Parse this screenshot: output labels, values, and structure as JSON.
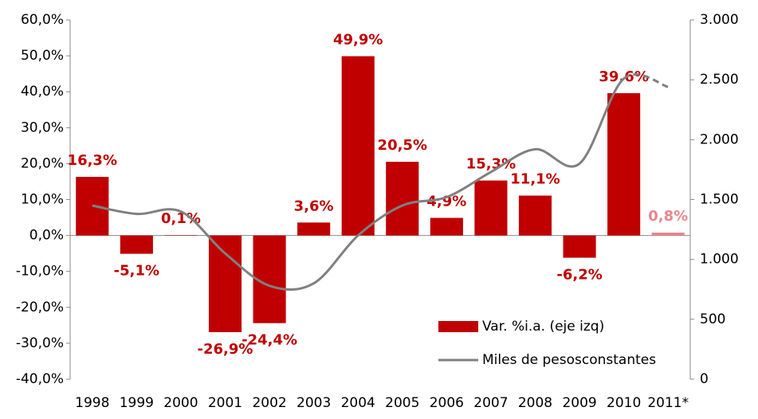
{
  "chart_data": {
    "type": "bar_line",
    "categories": [
      "1998",
      "1999",
      "2000",
      "2001",
      "2002",
      "2003",
      "2004",
      "2005",
      "2006",
      "2007",
      "2008",
      "2009",
      "2010",
      "2011*"
    ],
    "series": [
      {
        "name": "Var. %i.a. (eje izq)",
        "type": "bar",
        "color": "#c00000",
        "point_colors": [
          "#c00000",
          "#c00000",
          "#c00000",
          "#c00000",
          "#c00000",
          "#c00000",
          "#c00000",
          "#c00000",
          "#c00000",
          "#c00000",
          "#c00000",
          "#c00000",
          "#c00000",
          "#e8868d"
        ],
        "values": [
          16.3,
          -5.1,
          0.1,
          -26.9,
          -24.4,
          3.6,
          49.9,
          20.5,
          4.9,
          15.3,
          11.1,
          -6.2,
          39.6,
          0.8
        ],
        "value_labels": [
          "16,3%",
          "-5,1%",
          "0,1%",
          "-26,9%",
          "-24,4%",
          "3,6%",
          "49,9%",
          "20,5%",
          "4,9%",
          "15,3%",
          "11,1%",
          "-6,2%",
          "39,6%",
          "0,8%"
        ]
      },
      {
        "name": "Miles de pesosconstantes",
        "type": "line",
        "axis": "y2",
        "color": "#808080",
        "dashed_last_segment": true,
        "values": [
          1450,
          1380,
          1400,
          1050,
          780,
          800,
          1200,
          1450,
          1520,
          1730,
          1920,
          1800,
          2510,
          2440
        ]
      }
    ],
    "ylim": [
      -40,
      60
    ],
    "yticks": [
      {
        "value": -40,
        "label": "-40,0%"
      },
      {
        "value": -30,
        "label": "-30,0%"
      },
      {
        "value": -20,
        "label": "-20,0%"
      },
      {
        "value": -10,
        "label": "-10,0%"
      },
      {
        "value": 0,
        "label": "0,0%"
      },
      {
        "value": 10,
        "label": "10,0%"
      },
      {
        "value": 20,
        "label": "20,0%"
      },
      {
        "value": 30,
        "label": "30,0%"
      },
      {
        "value": 40,
        "label": "40,0%"
      },
      {
        "value": 50,
        "label": "50,0%"
      },
      {
        "value": 60,
        "label": "60,0%"
      }
    ],
    "y2lim": [
      0,
      3000
    ],
    "y2ticks": [
      0,
      500,
      {
        "value": 1000,
        "label": "1.000"
      },
      {
        "value": 1500,
        "label": "1.500"
      },
      {
        "value": 2000,
        "label": "2.000"
      },
      {
        "value": 2500,
        "label": "2.500"
      },
      {
        "value": 3000,
        "label": "3.000"
      }
    ],
    "legend": "lower right"
  }
}
